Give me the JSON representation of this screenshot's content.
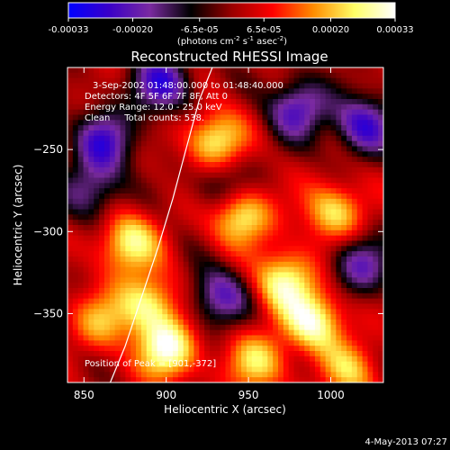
{
  "colorbar": {
    "tick_labels": [
      "-0.00033",
      "-0.00020",
      "-6.5e-05",
      "6.5e-05",
      "0.00020",
      "0.00033"
    ],
    "units_parts": [
      "(photons cm",
      "-2",
      " s",
      "-1",
      " asec",
      "-2",
      ")"
    ]
  },
  "chart_data": {
    "type": "heatmap",
    "title": "Reconstructed RHESSI Image",
    "xlabel": "Heliocentric X (arcsec)",
    "ylabel": "Heliocentric Y (arcsec)",
    "xlim": [
      840,
      1032
    ],
    "ylim": [
      -392,
      -200
    ],
    "x_ticks": [
      850,
      900,
      950,
      1000
    ],
    "y_ticks": [
      -250,
      -300,
      -350
    ],
    "x_tick_labels": [
      "850",
      "900",
      "950",
      "1000"
    ],
    "y_tick_labels": [
      "−250",
      "−300",
      "−350"
    ],
    "value_range": [
      -0.00033,
      0.00033
    ],
    "colormap": [
      "#0000ff",
      "#3a00c8",
      "#7a2aa0",
      "#000000",
      "#9a0000",
      "#ff0000",
      "#ff8c00",
      "#ffff66",
      "#ffffff"
    ],
    "annotations": [
      "3-Sep-2002 01:48:00.000 to 01:48:40.000",
      "Detectors: 4F 5F 6F 7F 8F, Att 0",
      "Energy Range: 12.0 - 25.0 keV",
      "Clean     Total counts: 538.",
      "Position of Peak = [901,-372]"
    ],
    "limb_curve": [
      [
        866,
        -392
      ],
      [
        875,
        -370
      ],
      [
        885,
        -340
      ],
      [
        895,
        -310
      ],
      [
        904,
        -280
      ],
      [
        912,
        -250
      ],
      [
        920,
        -220
      ],
      [
        928,
        -200
      ]
    ],
    "bright_sources": [
      {
        "x": 877,
        "y": -307,
        "level": 0.85
      },
      {
        "x": 889,
        "y": -344,
        "level": 0.8
      },
      {
        "x": 901,
        "y": -372,
        "level": 1.0
      },
      {
        "x": 930,
        "y": -245,
        "level": 0.85
      },
      {
        "x": 945,
        "y": -290,
        "level": 0.9
      },
      {
        "x": 972,
        "y": -330,
        "level": 0.9
      },
      {
        "x": 990,
        "y": -355,
        "level": 0.95
      },
      {
        "x": 1002,
        "y": -288,
        "level": 0.75
      },
      {
        "x": 955,
        "y": -380,
        "level": 0.7
      },
      {
        "x": 860,
        "y": -355,
        "level": 0.55
      },
      {
        "x": 1012,
        "y": -385,
        "level": 0.6
      }
    ],
    "dim_regions": [
      {
        "x": 862,
        "y": -245,
        "level": -0.8
      },
      {
        "x": 897,
        "y": -210,
        "level": -0.85
      },
      {
        "x": 980,
        "y": -225,
        "level": -0.8
      },
      {
        "x": 1020,
        "y": -235,
        "level": -0.85
      },
      {
        "x": 1018,
        "y": -320,
        "level": -0.7
      },
      {
        "x": 932,
        "y": -340,
        "level": -0.75
      },
      {
        "x": 855,
        "y": -275,
        "level": -0.6
      },
      {
        "x": 935,
        "y": -272,
        "level": -0.5
      }
    ]
  },
  "timestamp": "4-May-2013 07:27"
}
